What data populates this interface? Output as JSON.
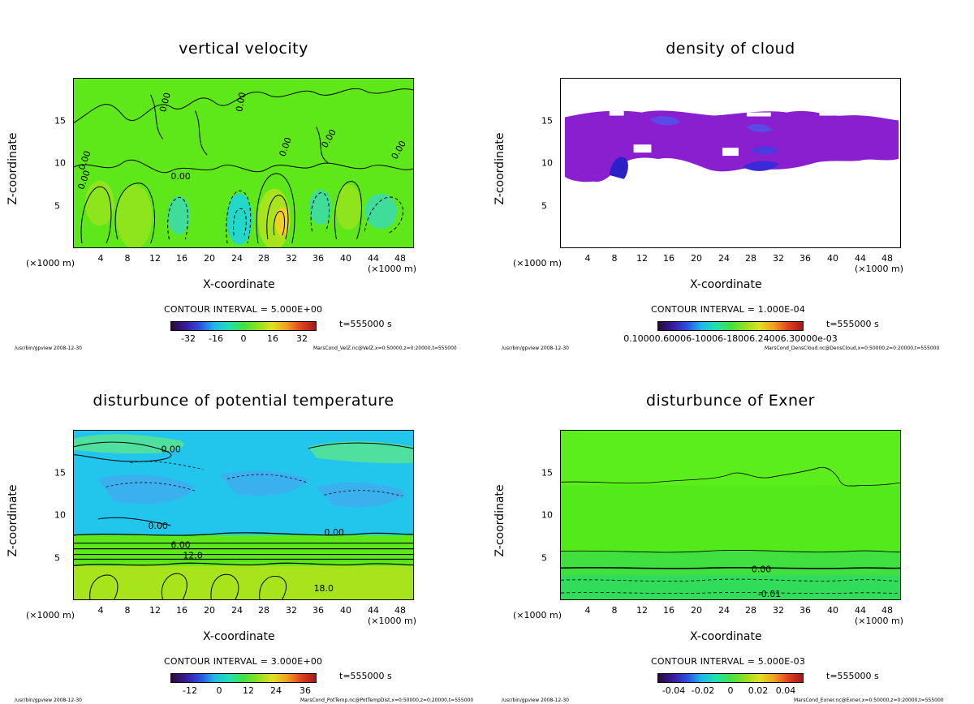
{
  "colors": {
    "velocity_bg": "#5ee81a",
    "cloud_fill": "#8a1fd0",
    "cloud_dense": "#2b1fc8",
    "potemp_bg": "#1ad0ea",
    "potemp_low": "#a8e41c",
    "exner_bg": "#52ea1a"
  },
  "chart_data": [
    {
      "type": "heatmap",
      "title": "vertical velocity",
      "xlabel": "X-coordinate",
      "ylabel": "Z-coordinate",
      "x_unit_left": "(×1000 m)",
      "x_unit_right": "(×1000 m)",
      "x_ticks": [
        "4",
        "8",
        "12",
        "16",
        "20",
        "24",
        "28",
        "32",
        "36",
        "40",
        "44",
        "48"
      ],
      "y_ticks": [
        "5",
        "10",
        "15"
      ],
      "xlim": [
        0,
        50
      ],
      "ylim": [
        0,
        20
      ],
      "contour_interval": "CONTOUR INTERVAL = 5.000E+00",
      "time_label": "t=555000 s",
      "colorbar_ticks": [
        "-32",
        "-16",
        "0",
        "16",
        "32"
      ],
      "contour_labels": [
        "0.00",
        "0.00",
        "0.00",
        "0.00",
        "0.00",
        "0.00",
        "0.00",
        "0.00"
      ],
      "footer_left": "/usr/bin/gpview  2008-12-30",
      "footer_right": "MarsCond_VelZ.nc@VelZ,x=0:50000,z=0:20000,t=555000"
    },
    {
      "type": "heatmap",
      "title": "density of cloud",
      "xlabel": "X-coordinate",
      "ylabel": "Z-coordinate",
      "x_unit_left": "(×1000 m)",
      "x_unit_right": "(×1000 m)",
      "x_ticks": [
        "4",
        "8",
        "12",
        "16",
        "20",
        "24",
        "28",
        "32",
        "36",
        "40",
        "44",
        "48"
      ],
      "y_ticks": [
        "5",
        "10",
        "15"
      ],
      "xlim": [
        0,
        50
      ],
      "ylim": [
        0,
        20
      ],
      "contour_interval": "CONTOUR INTERVAL = 1.000E-04",
      "time_label": "t=555000 s",
      "colorbar_ticks_text": "0.10000.60006-10006-18006.24006.30000e-03",
      "footer_left": "/usr/bin/gpview  2008-12-30",
      "footer_right": "MarsCond_DensCloud.nc@DensCloud,x=0:50000,z=0:20000,t=555000"
    },
    {
      "type": "heatmap",
      "title": "disturbunce of potential temperature",
      "xlabel": "X-coordinate",
      "ylabel": "Z-coordinate",
      "x_unit_left": "(×1000 m)",
      "x_unit_right": "(×1000 m)",
      "x_ticks": [
        "4",
        "8",
        "12",
        "16",
        "20",
        "24",
        "28",
        "32",
        "36",
        "40",
        "44",
        "48"
      ],
      "y_ticks": [
        "5",
        "10",
        "15"
      ],
      "xlim": [
        0,
        50
      ],
      "ylim": [
        0,
        20
      ],
      "contour_interval": "CONTOUR INTERVAL = 3.000E+00",
      "time_label": "t=555000 s",
      "colorbar_ticks": [
        "-12",
        "0",
        "12",
        "24",
        "36"
      ],
      "contour_labels": [
        "0.00",
        "0.00",
        "0.00",
        "6.00",
        "12.0",
        "18.0"
      ],
      "footer_left": "/usr/bin/gpview  2008-12-30",
      "footer_right": "MarsCond_PotTemp.nc@PotTempDist,x=0:50000,z=0:20000,t=555000"
    },
    {
      "type": "heatmap",
      "title": "disturbunce of Exner",
      "xlabel": "X-coordinate",
      "ylabel": "Z-coordinate",
      "x_unit_left": "(×1000 m)",
      "x_unit_right": "(×1000 m)",
      "x_ticks": [
        "4",
        "8",
        "12",
        "16",
        "20",
        "24",
        "28",
        "32",
        "36",
        "40",
        "44",
        "48"
      ],
      "y_ticks": [
        "5",
        "10",
        "15"
      ],
      "xlim": [
        0,
        50
      ],
      "ylim": [
        0,
        20
      ],
      "contour_interval": "CONTOUR INTERVAL = 5.000E-03",
      "time_label": "t=555000 s",
      "colorbar_ticks": [
        "-0.04",
        "-0.02",
        "0",
        "0.02",
        "0.04"
      ],
      "contour_labels": [
        "0.00",
        "-0.01"
      ],
      "footer_left": "/usr/bin/gpview  2008-12-30",
      "footer_right": "MarsCond_Exner.nc@Exner,x=0:50000,z=0:20000,t=555000"
    }
  ]
}
